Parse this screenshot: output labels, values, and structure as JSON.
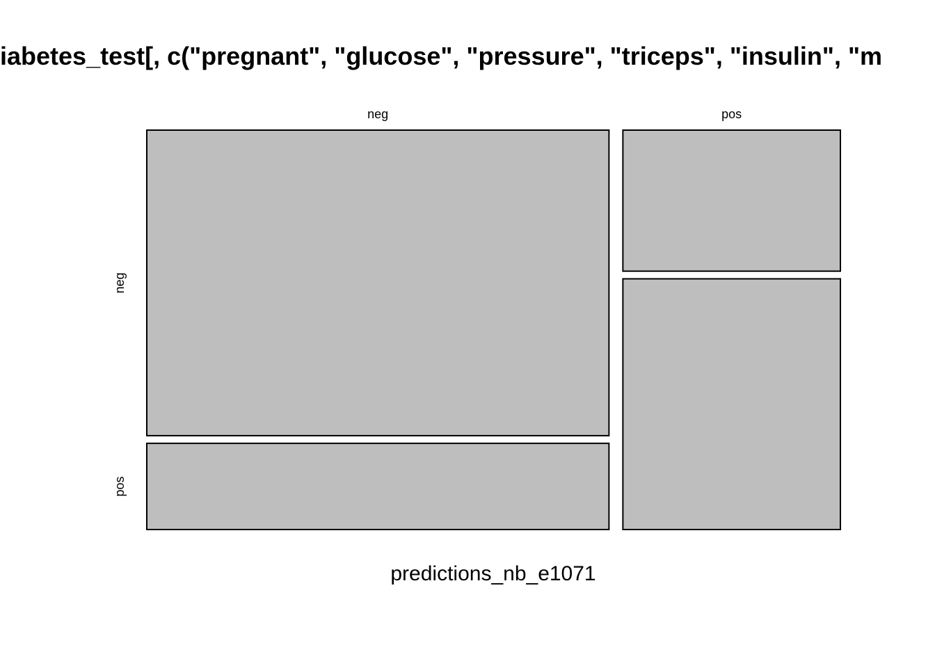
{
  "chart_data": {
    "type": "mosaic",
    "title": "diabetes_test[, c(\"pregnant\", \"glucose\", \"pressure\", \"triceps\", \"insulin\", \"m",
    "title_visible": "iabetes_test[, c(\"pregnant\", \"glucose\", \"pressure\", \"triceps\", \"insulin\", \"m",
    "xlabel": "predictions_nb_e1071",
    "ylabel": "",
    "columns": [
      "neg",
      "pos"
    ],
    "rows": [
      "neg",
      "pos"
    ],
    "column_proportions": [
      0.68,
      0.32
    ],
    "cells": [
      {
        "column": "neg",
        "row": "neg",
        "proportion_within_column": 0.78
      },
      {
        "column": "neg",
        "row": "pos",
        "proportion_within_column": 0.22
      },
      {
        "column": "pos",
        "row": "neg",
        "proportion_within_column": 0.36
      },
      {
        "column": "pos",
        "row": "pos",
        "proportion_within_column": 0.64
      }
    ],
    "fill_color": "#bebebe",
    "border_color": "#000000",
    "grid": false,
    "legend": "none"
  }
}
